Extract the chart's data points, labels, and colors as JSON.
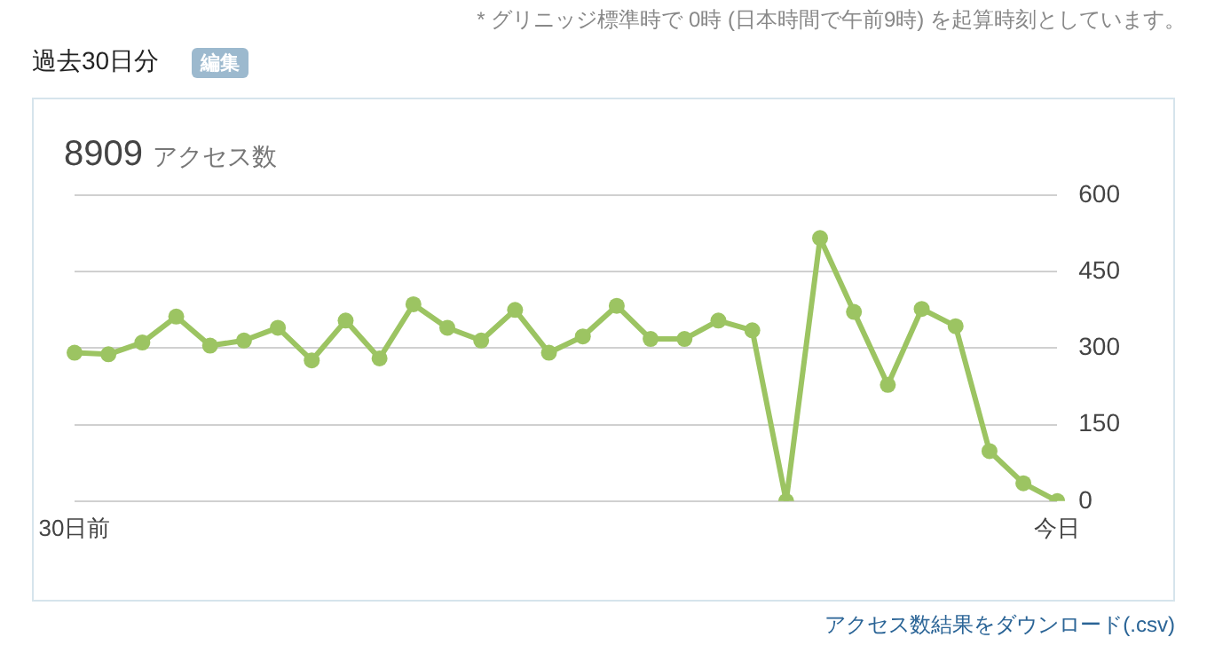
{
  "chart_data": {
    "type": "line",
    "title": "過去30日分",
    "subtitle": "8909 アクセス数",
    "annotations": [
      "* グリニッジ標準時で 0時 (日本時間で午前9時) を起算時刻としています。",
      "編集",
      "アクセス数結果をダウンロード(.csv)"
    ],
    "categories": [
      "30日前",
      null,
      null,
      null,
      null,
      null,
      null,
      null,
      null,
      null,
      null,
      null,
      null,
      null,
      null,
      null,
      null,
      null,
      null,
      null,
      null,
      null,
      null,
      null,
      null,
      null,
      null,
      null,
      null,
      "今日"
    ],
    "series": [
      {
        "color": "#9cc462",
        "values": [
          291,
          288,
          311,
          362,
          305,
          315,
          340,
          276,
          354,
          280,
          386,
          340,
          315,
          375,
          291,
          323,
          383,
          318,
          318,
          354,
          335,
          0,
          516,
          371,
          228,
          377,
          343,
          98,
          35,
          0
        ]
      }
    ],
    "ylim": [
      0,
      600
    ],
    "yticks": [
      0,
      150,
      300,
      450,
      600
    ],
    "grid": "y",
    "legend": false,
    "marker": "circle"
  }
}
